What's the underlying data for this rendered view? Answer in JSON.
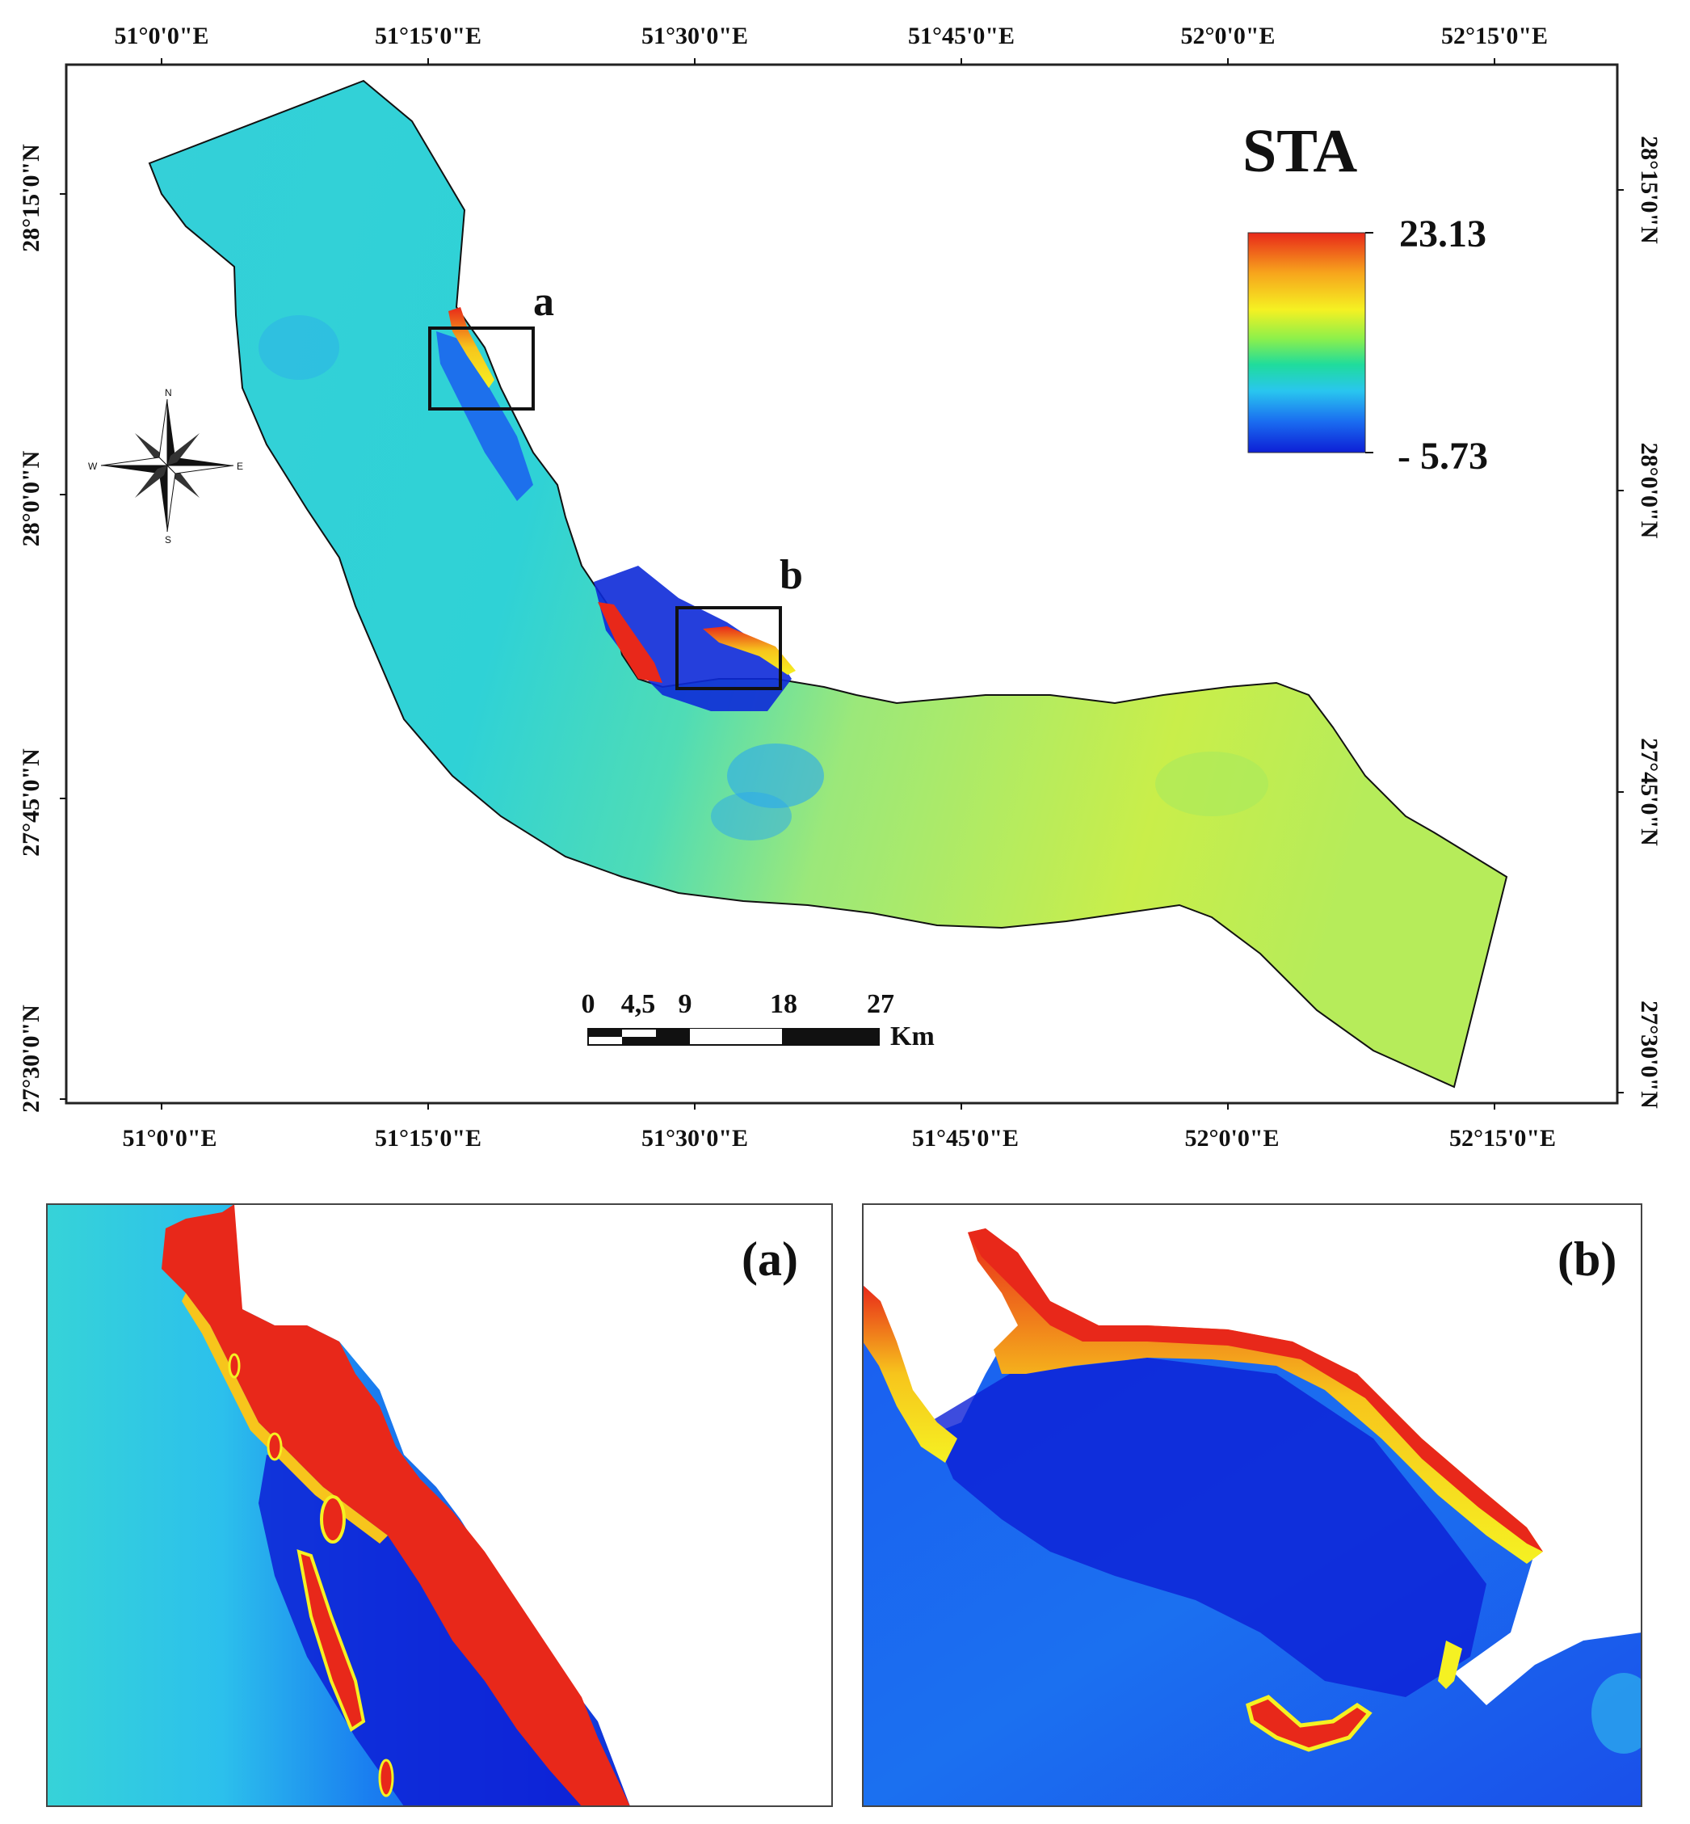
{
  "map": {
    "lon_ticks_top": [
      "51°0'0\"E",
      "51°15'0\"E",
      "51°30'0\"E",
      "51°45'0\"E",
      "52°0'0\"E",
      "52°15'0\"E"
    ],
    "lon_ticks_bottom": [
      "51°0'0\"E",
      "51°15'0\"E",
      "51°30'0\"E",
      "51°45'0\"E",
      "52°0'0\"E",
      "52°15'0\"E"
    ],
    "lat_ticks_left": [
      "28°15'0\"N",
      "28°0'0\"N",
      "27°45'0\"N",
      "27°30'0\"N"
    ],
    "lat_ticks_right": [
      "28°15'0\"N",
      "28°0'0\"N",
      "27°45'0\"N",
      "27°30'0\"N"
    ],
    "legend": {
      "title": "STA",
      "max_label": "23.13",
      "min_label": "- 5.73",
      "max_value": 23.13,
      "min_value": -5.73,
      "colors": [
        "#e8281a",
        "#f7a31c",
        "#f5f122",
        "#8ef04a",
        "#1fdc9c",
        "#29c6ef",
        "#1a6cf0",
        "#0d1fd6"
      ]
    },
    "inset_markers": [
      "a",
      "b"
    ],
    "scalebar": {
      "labels": [
        "0",
        "4,5",
        "9",
        "18",
        "27"
      ],
      "unit": "Km"
    },
    "compass": {
      "n": "N",
      "e": "E",
      "s": "S",
      "w": "W"
    }
  },
  "insets": {
    "a_label": "(a)",
    "b_label": "(b)"
  }
}
